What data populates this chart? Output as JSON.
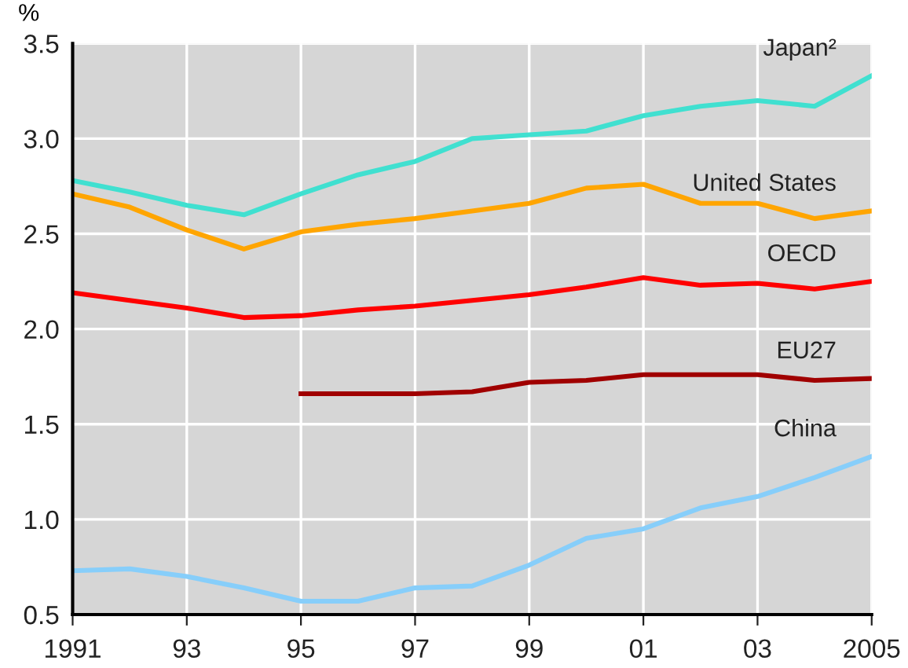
{
  "chart_data": {
    "type": "line",
    "ylabel": "%",
    "x": [
      1991,
      1992,
      1993,
      1994,
      1995,
      1996,
      1997,
      1998,
      1999,
      2000,
      2001,
      2002,
      2003,
      2004,
      2005
    ],
    "series": [
      {
        "name": "Japan²",
        "color": "#40e0d0",
        "values": [
          2.78,
          2.72,
          2.65,
          2.6,
          2.71,
          2.81,
          2.88,
          3.0,
          3.02,
          3.04,
          3.12,
          3.17,
          3.2,
          3.17,
          3.33
        ]
      },
      {
        "name": "United States",
        "color": "#ffa500",
        "values": [
          2.71,
          2.64,
          2.52,
          2.42,
          2.51,
          2.55,
          2.58,
          2.62,
          2.66,
          2.74,
          2.76,
          2.66,
          2.66,
          2.58,
          2.62
        ]
      },
      {
        "name": "OECD",
        "color": "#ff0000",
        "values": [
          2.19,
          2.15,
          2.11,
          2.06,
          2.07,
          2.1,
          2.12,
          2.15,
          2.18,
          2.22,
          2.27,
          2.23,
          2.24,
          2.21,
          2.25
        ]
      },
      {
        "name": "EU27",
        "color": "#a00000",
        "values": [
          null,
          null,
          null,
          null,
          1.66,
          1.66,
          1.66,
          1.67,
          1.72,
          1.73,
          1.76,
          1.76,
          1.76,
          1.73,
          1.74
        ]
      },
      {
        "name": "China",
        "color": "#87cefa",
        "values": [
          0.73,
          0.74,
          0.7,
          0.64,
          0.57,
          0.57,
          0.64,
          0.65,
          0.76,
          0.9,
          0.95,
          1.06,
          1.12,
          1.22,
          1.33
        ]
      }
    ],
    "xlim": [
      1991,
      2005
    ],
    "xticks": [
      1991,
      {
        "value": 1993,
        "label": "93"
      },
      {
        "value": 1995,
        "label": "95"
      },
      {
        "value": 1997,
        "label": "97"
      },
      {
        "value": 1999,
        "label": "99"
      },
      {
        "value": 2001,
        "label": "01"
      },
      {
        "value": 2003,
        "label": "03"
      },
      2005
    ],
    "ylim": [
      0.5,
      3.5
    ],
    "yticks": [
      {
        "value": 0.5,
        "label": "0.5"
      },
      {
        "value": 1.0,
        "label": "1.0"
      },
      {
        "value": 1.5,
        "label": "1.5"
      },
      {
        "value": 2.0,
        "label": "2.0"
      },
      {
        "value": 2.5,
        "label": "2.5"
      },
      {
        "value": 3.0,
        "label": "3.0"
      },
      {
        "value": 3.5,
        "label": "3.5"
      }
    ],
    "grid": true,
    "legend": false,
    "marker": "none",
    "line_style": "solid"
  }
}
